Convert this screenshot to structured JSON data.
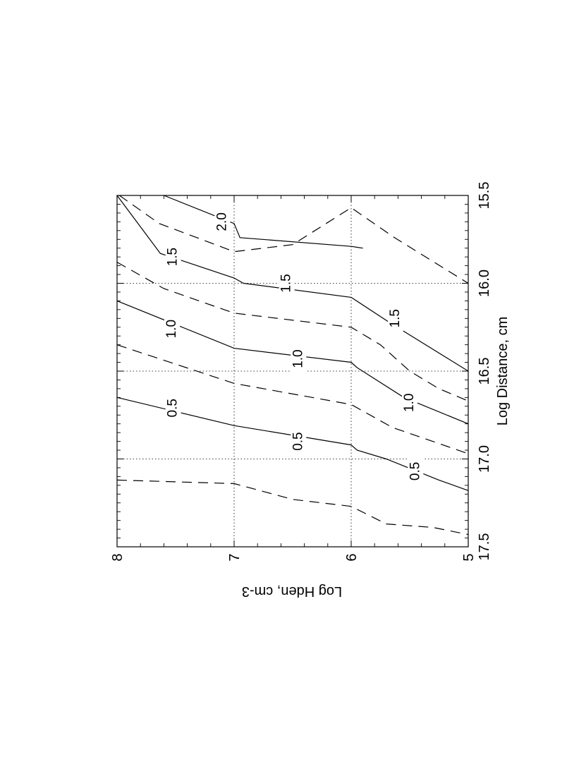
{
  "chart_data": {
    "type": "contour",
    "orientation": "rotated 90 degrees counter-clockwise",
    "xlabel": "Log Distance, cm",
    "ylabel": "Log Hden, cm-3",
    "xlim": [
      15.5,
      17.5
    ],
    "ylim": [
      5,
      8
    ],
    "x_ticks": [
      "15.5",
      "16.0",
      "16.5",
      "17.0",
      "17.5"
    ],
    "y_ticks": [
      "5",
      "6",
      "7",
      "8"
    ],
    "grid": true,
    "contours": [
      {
        "level": 2.0,
        "style": "solid",
        "label": "2.0",
        "label_at": [
          15.65,
          7.1
        ],
        "points": [
          [
            15.5,
            7.6
          ],
          [
            15.66,
            7.0
          ],
          [
            15.74,
            6.95
          ],
          [
            15.79,
            6.0
          ],
          [
            15.8,
            5.9
          ]
        ]
      },
      {
        "level": 1.75,
        "style": "dashed",
        "points": [
          [
            15.5,
            7.98
          ],
          [
            15.66,
            7.64
          ],
          [
            15.82,
            7.0
          ],
          [
            15.78,
            6.5
          ],
          [
            15.57,
            6.0
          ],
          [
            15.74,
            5.63
          ],
          [
            16.0,
            5.0
          ]
        ]
      },
      {
        "level": 1.5,
        "style": "solid",
        "label": "1.5",
        "label_at": [
          15.85,
          7.52
        ],
        "points": [
          [
            15.5,
            8.0
          ],
          [
            15.83,
            7.63
          ],
          [
            15.97,
            7.0
          ],
          [
            16.0,
            6.92
          ],
          [
            16.08,
            6.0
          ],
          [
            16.22,
            5.68
          ],
          [
            16.5,
            5.0
          ]
        ]
      },
      {
        "level": 1.5,
        "style": "solid",
        "label": "1.5",
        "label_at": [
          16.2,
          5.62
        ]
      },
      {
        "level": 1.5,
        "style": "solid",
        "label": "1.5",
        "label_at": [
          16.0,
          6.55
        ]
      },
      {
        "level": 1.25,
        "style": "dashed",
        "points": [
          [
            15.88,
            8.0
          ],
          [
            16.03,
            7.6
          ],
          [
            16.17,
            7.0
          ],
          [
            16.25,
            6.0
          ],
          [
            16.35,
            5.75
          ],
          [
            16.5,
            5.5
          ],
          [
            16.6,
            5.25
          ],
          [
            16.67,
            5.0
          ]
        ]
      },
      {
        "level": 1.0,
        "style": "solid",
        "label": "1.0",
        "label_at": [
          16.26,
          7.53
        ],
        "points": [
          [
            16.1,
            8.0
          ],
          [
            16.37,
            7.0
          ],
          [
            16.45,
            6.0
          ],
          [
            16.48,
            5.95
          ],
          [
            16.65,
            5.55
          ],
          [
            16.8,
            5.0
          ]
        ]
      },
      {
        "level": 1.0,
        "style": "solid",
        "label": "1.0",
        "label_at": [
          16.43,
          6.45
        ]
      },
      {
        "level": 1.0,
        "style": "solid",
        "label": "1.0",
        "label_at": [
          16.68,
          5.5
        ]
      },
      {
        "level": 0.75,
        "style": "dashed",
        "points": [
          [
            16.35,
            8.0
          ],
          [
            16.57,
            7.0
          ],
          [
            16.69,
            6.0
          ],
          [
            16.82,
            5.65
          ],
          [
            16.97,
            5.0
          ]
        ]
      },
      {
        "level": 0.5,
        "style": "solid",
        "label": "0.5",
        "label_at": [
          16.71,
          7.52
        ],
        "points": [
          [
            16.65,
            8.0
          ],
          [
            16.81,
            7.0
          ],
          [
            16.92,
            6.0
          ],
          [
            16.95,
            5.95
          ],
          [
            17.0,
            5.7
          ],
          [
            17.12,
            5.25
          ],
          [
            17.18,
            5.0
          ]
        ]
      },
      {
        "level": 0.5,
        "style": "solid",
        "label": "0.5",
        "label_at": [
          16.9,
          6.45
        ]
      },
      {
        "level": 0.5,
        "style": "solid",
        "label": "0.5",
        "label_at": [
          17.07,
          5.45
        ]
      },
      {
        "level": 0.25,
        "style": "dashed",
        "points": [
          [
            17.12,
            8.0
          ],
          [
            17.14,
            7.0
          ],
          [
            17.23,
            6.5
          ],
          [
            17.27,
            6.0
          ],
          [
            17.37,
            5.7
          ],
          [
            17.39,
            5.3
          ],
          [
            17.43,
            5.0
          ]
        ]
      }
    ]
  }
}
